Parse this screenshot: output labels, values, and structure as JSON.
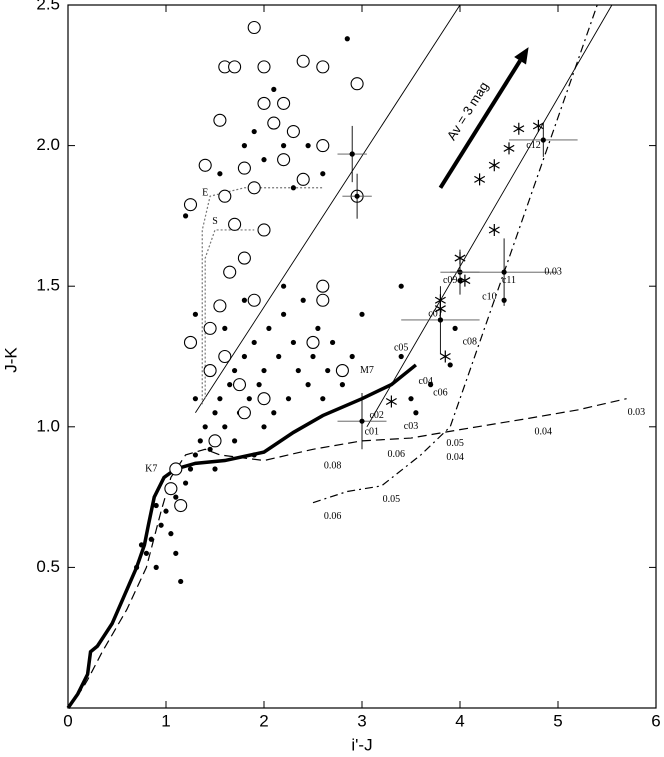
{
  "chart_data": {
    "type": "scatter",
    "xlabel": "i'-J",
    "ylabel": "J-K",
    "xlim": [
      0,
      6
    ],
    "ylim": [
      0,
      2.5
    ],
    "xticks": [
      0,
      1,
      2,
      3,
      4,
      5,
      6
    ],
    "yticks": [
      0.5,
      {
        "value": 1,
        "label": "1.0"
      },
      1.5,
      {
        "value": 2,
        "label": "2.0"
      },
      2.5
    ],
    "series": [
      {
        "marker": "dot",
        "color": "#000000",
        "x": [
          0.8,
          0.85,
          0.9,
          0.95,
          1.0,
          1.05,
          1.1,
          1.15,
          0.9,
          1.2,
          1.25,
          1.3,
          1.35,
          1.4,
          1.45,
          1.5,
          1.55,
          1.6,
          1.65,
          1.7,
          1.75,
          1.8,
          1.85,
          1.9,
          1.95,
          2.0,
          2.05,
          2.1,
          2.15,
          2.2,
          2.25,
          2.3,
          2.35,
          2.4,
          2.45,
          2.5,
          2.55,
          2.6,
          2.65,
          2.7,
          2.8,
          2.9,
          3.0,
          1.6,
          1.7,
          1.9,
          2.0,
          1.3,
          1.5,
          1.8,
          2.2,
          1.2,
          1.3,
          1.9,
          2.0,
          2.1,
          2.2,
          2.3,
          2.45,
          2.6,
          2.85,
          1.55,
          1.8,
          2.9,
          3.4,
          3.4,
          3.5,
          3.55,
          3.7,
          4.45,
          4.0,
          3.8,
          3.95,
          3.9,
          0.7,
          1.1,
          0.75
        ],
        "y": [
          0.55,
          0.6,
          0.5,
          0.65,
          0.7,
          0.62,
          0.75,
          0.45,
          0.72,
          0.8,
          0.85,
          0.9,
          0.95,
          1.0,
          0.92,
          1.05,
          1.1,
          1.0,
          1.15,
          1.2,
          1.05,
          1.25,
          1.1,
          1.3,
          1.15,
          1.2,
          1.35,
          1.05,
          1.25,
          1.4,
          1.1,
          1.3,
          1.2,
          1.45,
          1.15,
          1.25,
          1.35,
          1.1,
          1.2,
          1.3,
          1.15,
          1.25,
          1.4,
          1.35,
          0.95,
          0.9,
          1.0,
          1.1,
          0.85,
          1.45,
          1.5,
          1.75,
          1.4,
          2.05,
          1.95,
          2.2,
          2.0,
          1.85,
          2.0,
          1.9,
          2.38,
          1.9,
          2.0,
          1.97,
          1.5,
          1.25,
          1.1,
          1.05,
          1.15,
          1.45,
          1.52,
          1.38,
          1.35,
          1.22,
          0.5,
          0.55,
          0.58
        ]
      },
      {
        "marker": "circle",
        "color": "#000000",
        "x": [
          1.9,
          2.0,
          1.6,
          1.7,
          2.4,
          2.6,
          2.95,
          2.0,
          2.2,
          1.55,
          2.1,
          2.3,
          2.6,
          1.4,
          1.8,
          2.2,
          1.9,
          1.6,
          2.4,
          1.25,
          1.7,
          2.0,
          1.8,
          1.65,
          1.9,
          1.45,
          1.55,
          1.25,
          1.45,
          1.6,
          2.5,
          2.6,
          2.8,
          1.75,
          1.8,
          2.0,
          1.05,
          1.15,
          1.1,
          1.5,
          2.95,
          2.6
        ],
        "y": [
          2.42,
          2.28,
          2.28,
          2.28,
          2.3,
          2.28,
          2.22,
          2.15,
          2.15,
          2.09,
          2.08,
          2.05,
          2.0,
          1.93,
          1.92,
          1.95,
          1.85,
          1.82,
          1.88,
          1.79,
          1.72,
          1.7,
          1.6,
          1.55,
          1.45,
          1.35,
          1.43,
          1.3,
          1.2,
          1.25,
          1.3,
          1.45,
          1.2,
          1.15,
          1.05,
          1.1,
          0.78,
          0.72,
          0.85,
          0.95,
          1.82,
          1.5
        ]
      },
      {
        "marker": "star",
        "color": "#000000",
        "x": [
          4.6,
          4.8,
          4.5,
          4.35,
          4.2,
          4.35,
          4.0,
          4.05,
          3.8,
          3.8,
          3.85,
          3.3
        ],
        "y": [
          2.06,
          2.07,
          1.99,
          1.93,
          1.88,
          1.7,
          1.6,
          1.52,
          1.42,
          1.45,
          1.25,
          1.09
        ]
      }
    ],
    "lines": [
      {
        "style": "thick",
        "x": [
          0,
          0.1,
          0.2,
          0.23,
          0.3,
          0.45,
          0.55,
          0.7,
          0.78,
          0.82,
          0.88,
          0.98,
          1.1,
          1.3,
          1.6,
          2.0,
          2.3,
          2.6,
          3.0,
          3.3,
          3.55
        ],
        "y": [
          0,
          0.05,
          0.12,
          0.2,
          0.22,
          0.3,
          0.38,
          0.5,
          0.58,
          0.65,
          0.75,
          0.82,
          0.85,
          0.87,
          0.88,
          0.91,
          0.98,
          1.04,
          1.1,
          1.15,
          1.22
        ]
      },
      {
        "style": "dashed",
        "x": [
          0,
          0.15,
          0.2,
          0.35,
          0.6,
          0.8,
          0.95,
          1.05,
          1.2,
          1.4,
          1.55,
          2.0,
          2.5,
          3.0,
          3.5,
          4.0,
          4.7,
          5.2,
          5.7
        ],
        "y": [
          0,
          0.07,
          0.1,
          0.2,
          0.35,
          0.5,
          0.7,
          0.82,
          0.9,
          0.92,
          0.9,
          0.88,
          0.92,
          0.95,
          0.96,
          0.99,
          1.03,
          1.06,
          1.1
        ]
      },
      {
        "style": "dashdot",
        "x": [
          2.5,
          2.85,
          3.2,
          3.6,
          3.9,
          4.4,
          4.8,
          5.2,
          5.4
        ],
        "y": [
          0.73,
          0.77,
          0.79,
          0.9,
          1.0,
          1.5,
          1.9,
          2.3,
          2.5
        ]
      },
      {
        "style": "thin",
        "x": [
          1.3,
          4.0
        ],
        "y": [
          1.05,
          2.5
        ]
      },
      {
        "style": "thin",
        "x": [
          3.05,
          5.55
        ],
        "y": [
          1.0,
          2.5
        ]
      },
      {
        "style": "dotted",
        "x": [
          1.37,
          1.37,
          1.45,
          1.8,
          2.6
        ],
        "y": [
          1.08,
          1.7,
          1.82,
          1.85,
          1.85
        ]
      },
      {
        "style": "dotted",
        "x": [
          1.4,
          1.4,
          1.5,
          1.9
        ],
        "y": [
          1.1,
          1.6,
          1.7,
          1.7
        ]
      }
    ],
    "errorbars": {
      "x": [
        2.9,
        2.95,
        3.0,
        3.8,
        4.0,
        4.45,
        4.85
      ],
      "y": [
        1.97,
        1.82,
        1.02,
        1.38,
        1.55,
        1.55,
        2.02
      ],
      "xerr": [
        0.15,
        0.15,
        0.25,
        0.4,
        0.2,
        0.55,
        0.35
      ],
      "yerr": [
        0.1,
        0.08,
        0.1,
        0.12,
        0.08,
        0.12,
        0.06
      ]
    },
    "arrow": {
      "label": "Av = 3 mag",
      "x": [
        3.8,
        4.7
      ],
      "y": [
        1.85,
        2.35
      ]
    },
    "annotations": [
      {
        "text": "K7",
        "x": 0.85,
        "y": 0.85
      },
      {
        "text": "M7",
        "x": 3.05,
        "y": 1.2
      },
      {
        "text": "E",
        "x": 1.4,
        "y": 1.83
      },
      {
        "text": "S",
        "x": 1.5,
        "y": 1.73
      },
      {
        "text": "c01",
        "x": 3.1,
        "y": 0.98
      },
      {
        "text": "c02",
        "x": 3.15,
        "y": 1.04
      },
      {
        "text": "c03",
        "x": 3.5,
        "y": 1.0
      },
      {
        "text": "c04",
        "x": 3.65,
        "y": 1.16
      },
      {
        "text": "c05",
        "x": 3.4,
        "y": 1.28
      },
      {
        "text": "c06",
        "x": 3.8,
        "y": 1.12
      },
      {
        "text": "c07",
        "x": 3.75,
        "y": 1.4
      },
      {
        "text": "c08",
        "x": 4.1,
        "y": 1.3
      },
      {
        "text": "c09",
        "x": 3.9,
        "y": 1.52
      },
      {
        "text": "c10",
        "x": 4.3,
        "y": 1.46
      },
      {
        "text": "c11",
        "x": 4.5,
        "y": 1.52
      },
      {
        "text": "c12",
        "x": 4.75,
        "y": 2.0
      },
      {
        "text": "0.03",
        "x": 5.8,
        "y": 1.05
      },
      {
        "text": "0.04",
        "x": 4.85,
        "y": 0.98
      },
      {
        "text": "0.05",
        "x": 3.95,
        "y": 0.94
      },
      {
        "text": "0.04",
        "x": 3.95,
        "y": 0.89
      },
      {
        "text": "0.06",
        "x": 3.35,
        "y": 0.9
      },
      {
        "text": "0.08",
        "x": 2.7,
        "y": 0.86
      },
      {
        "text": "0.05",
        "x": 3.3,
        "y": 0.74
      },
      {
        "text": "0.06",
        "x": 2.7,
        "y": 0.68
      },
      {
        "text": "0.03",
        "x": 4.95,
        "y": 1.55
      }
    ]
  }
}
